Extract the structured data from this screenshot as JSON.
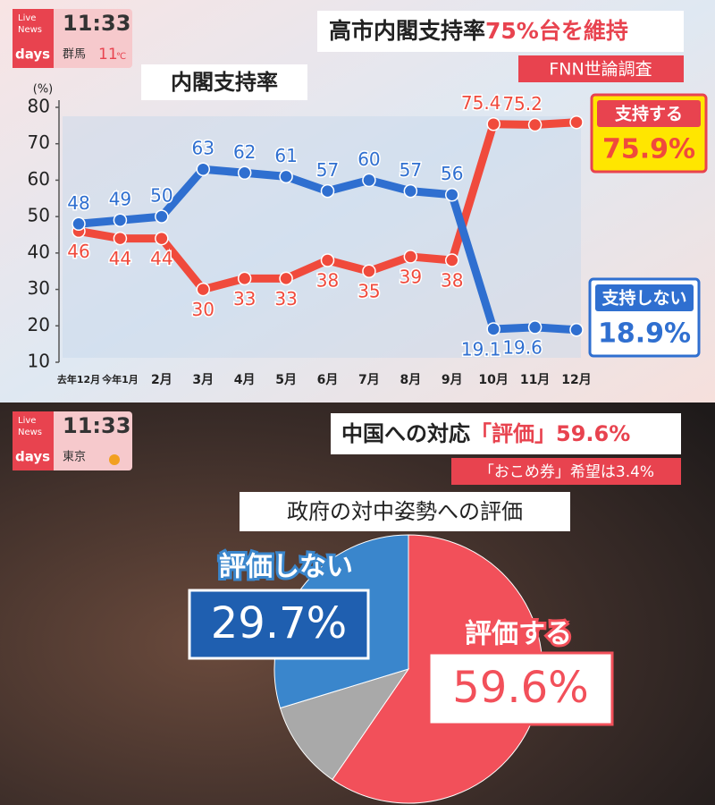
{
  "top": {
    "brand": [
      "Live",
      "News",
      "days"
    ],
    "time": "11:33",
    "location": "群馬",
    "temperature": "11",
    "temp_unit": "℃",
    "headline": [
      "高市内閣支持率",
      "75%台を維持"
    ],
    "source": "FNN世論調査"
  },
  "bottom": {
    "brand": [
      "Live",
      "News",
      "days"
    ],
    "time": "11:33",
    "location": "東京",
    "headline": [
      "中国への対応",
      "「評価」59.6%"
    ],
    "subheadline": "「おこめ券」希望は3.4%"
  },
  "chart_data": [
    {
      "type": "line",
      "title": "内閣支持率",
      "y_label": "(%)",
      "categories": [
        "去年12月",
        "今年1月",
        "2月",
        "3月",
        "4月",
        "5月",
        "6月",
        "7月",
        "8月",
        "9月",
        "10月",
        "11月",
        "12月"
      ],
      "ylim": [
        10,
        80
      ],
      "yticks": [
        10,
        20,
        30,
        40,
        50,
        60,
        70,
        80
      ],
      "grid": false,
      "series": [
        {
          "name": "支持する",
          "color": "#f04a3c",
          "values": [
            46,
            44,
            44,
            30,
            33,
            33,
            38,
            35,
            39,
            38,
            75.4,
            75.2,
            75.9
          ],
          "value_labels": [
            "46",
            "44",
            "44",
            "30",
            "33",
            "33",
            "38",
            "35",
            "39",
            "38",
            "75.4",
            "75.2",
            "75.9%"
          ]
        },
        {
          "name": "支持しない",
          "color": "#2f6fd0",
          "values": [
            48,
            49,
            50,
            63,
            62,
            61,
            57,
            60,
            57,
            56,
            19.1,
            19.6,
            18.9
          ],
          "value_labels": [
            "48",
            "49",
            "50",
            "63",
            "62",
            "61",
            "57",
            "60",
            "57",
            "56",
            "19.1",
            "19.6",
            "18.9%"
          ]
        }
      ]
    },
    {
      "type": "pie",
      "title": "政府の対中姿勢への評価",
      "categories": [
        "評価する",
        null,
        "評価しない"
      ],
      "values": [
        59.6,
        10.7,
        29.7
      ],
      "value_labels": [
        "59.6%",
        null,
        "29.7%"
      ],
      "colors": [
        "#f2505a",
        "#a9a9a9",
        "#3a86cc"
      ]
    }
  ]
}
